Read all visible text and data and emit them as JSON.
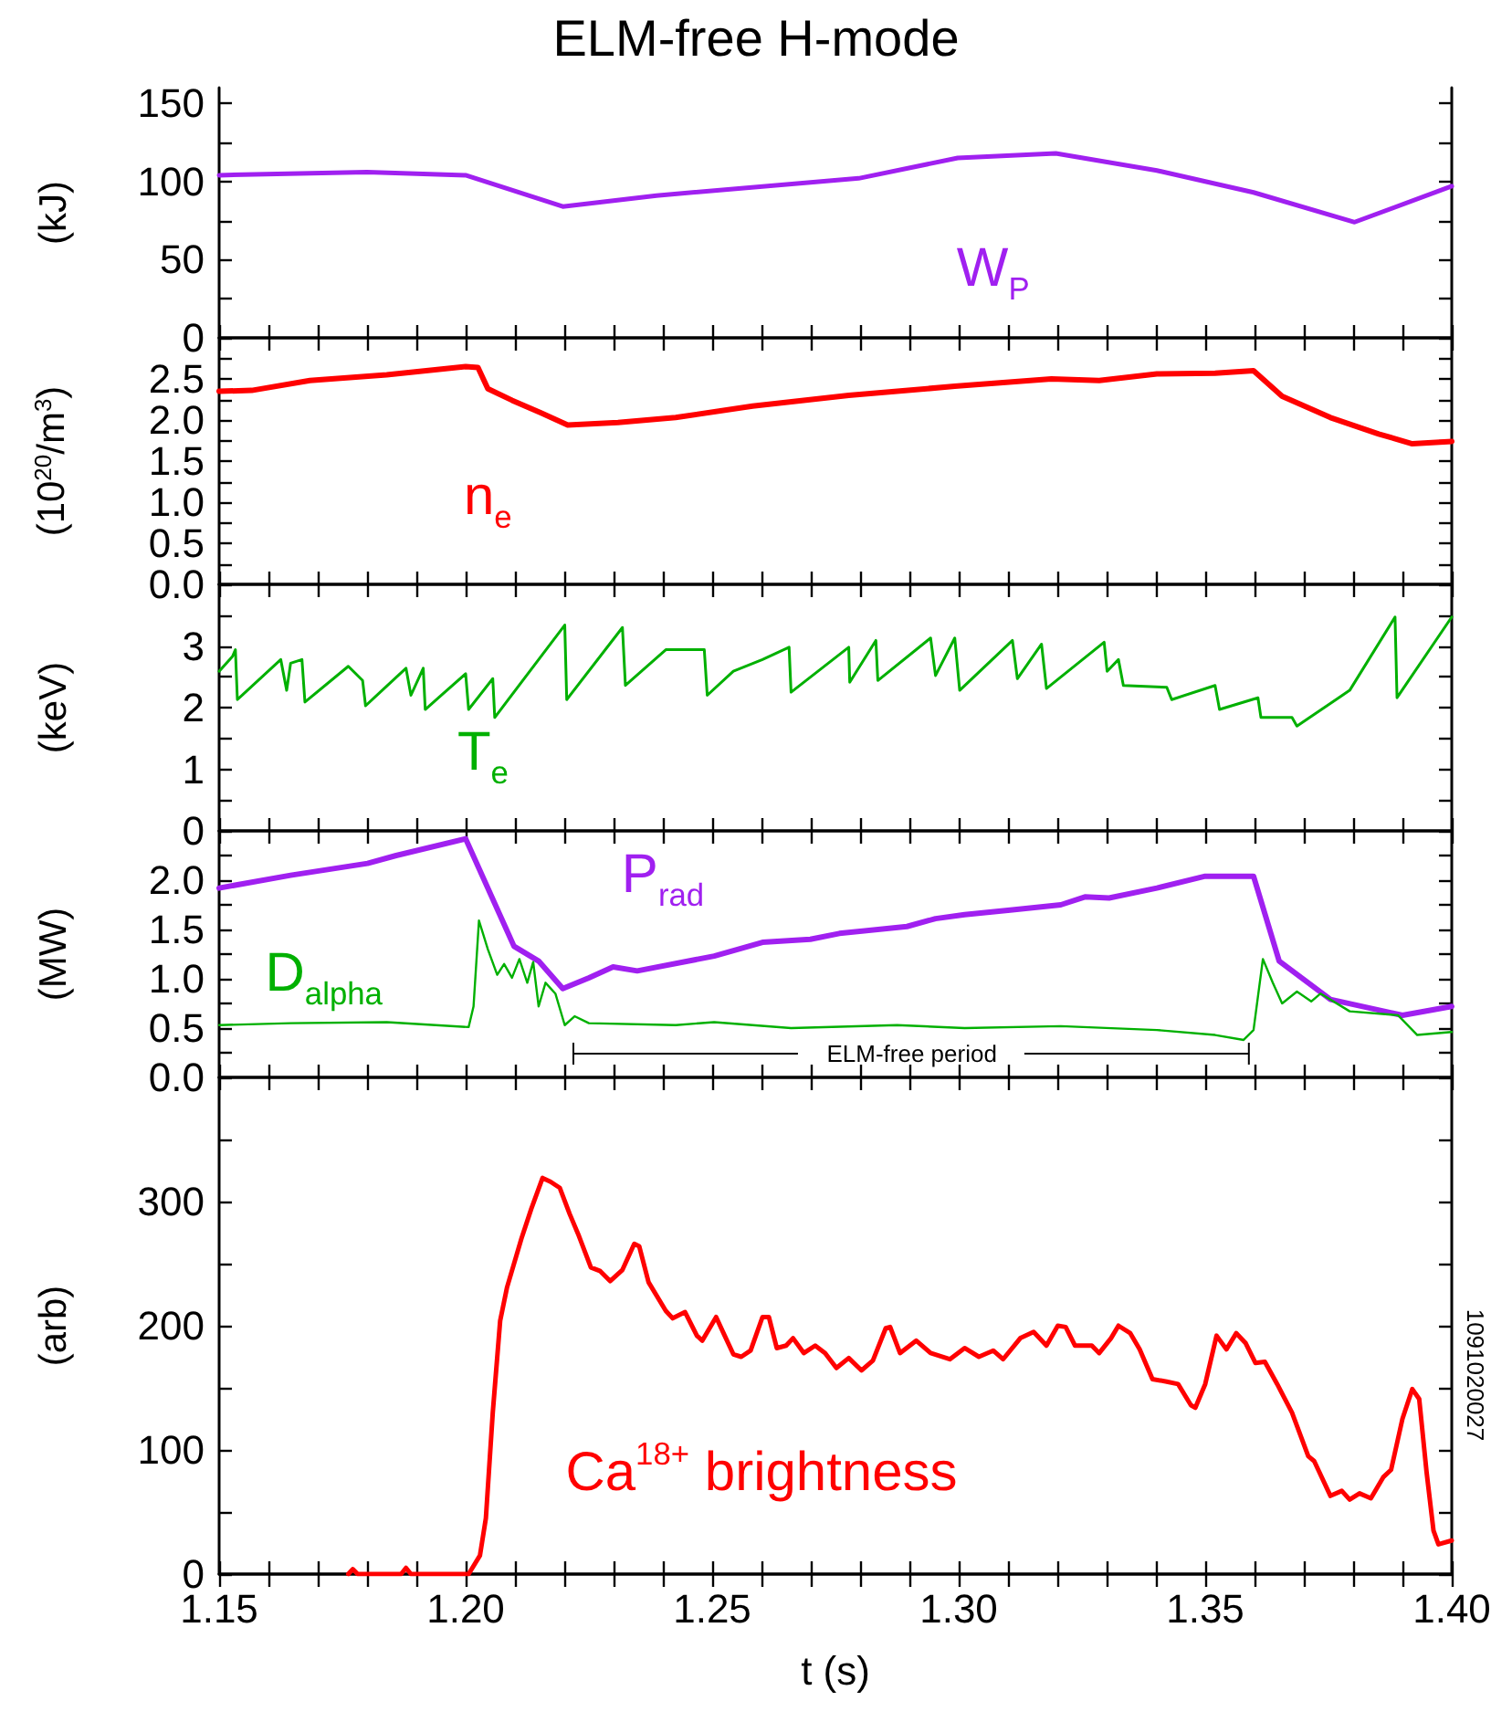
{
  "chart_data": [
    {
      "type": "line",
      "title": "ELM-free H-mode",
      "ylabel": "(kJ)",
      "tick_labels": "y",
      "xlim": [
        1.15,
        1.4
      ],
      "ylim": [
        0,
        160
      ],
      "xticks": [
        1.15,
        1.16,
        1.17,
        1.18,
        1.19,
        1.2,
        1.21,
        1.22,
        1.23,
        1.24,
        1.25,
        1.26,
        1.27,
        1.28,
        1.29,
        1.3,
        1.31,
        1.32,
        1.33,
        1.34,
        1.35,
        1.36,
        1.37,
        1.38,
        1.39,
        1.4
      ],
      "yticks": [
        0,
        {
          "value": 25,
          "label": null
        },
        50,
        {
          "value": 75,
          "label": null
        },
        100,
        {
          "value": 125,
          "label": null
        },
        150
      ],
      "annotations": [
        "W$_{P}$"
      ],
      "series": [
        {
          "color": "#a020f0",
          "x": [
            1.15,
            1.18,
            1.2,
            1.2197,
            1.2387,
            1.2797,
            1.2998,
            1.3197,
            1.3402,
            1.3598,
            1.3803,
            1.4
          ],
          "values": [
            104,
            106,
            104,
            84,
            91,
            102,
            115,
            118,
            107,
            93,
            74,
            97
          ]
        }
      ]
    },
    {
      "type": "line",
      "ylabel": "(10$^{20}$/m$^{3}$)",
      "tick_labels": "y",
      "xlim": [
        1.15,
        1.4
      ],
      "ylim": [
        0,
        3
      ],
      "xticks": [
        1.15,
        1.16,
        1.17,
        1.18,
        1.19,
        1.2,
        1.21,
        1.22,
        1.23,
        1.24,
        1.25,
        1.26,
        1.27,
        1.28,
        1.29,
        1.3,
        1.31,
        1.32,
        1.33,
        1.34,
        1.35,
        1.36,
        1.37,
        1.38,
        1.39,
        1.4
      ],
      "yticks": [
        {
          "value": 0,
          "label": "0.0"
        },
        {
          "value": 0.25,
          "label": null
        },
        0.5,
        {
          "value": 0.75,
          "label": null
        },
        {
          "value": 1,
          "label": "1.0"
        },
        {
          "value": 1.25,
          "label": null
        },
        1.5,
        {
          "value": 1.75,
          "label": null
        },
        {
          "value": 2,
          "label": "2.0"
        },
        {
          "value": 2.25,
          "label": null
        },
        2.5,
        {
          "value": 2.75,
          "label": null
        }
      ],
      "annotations": [
        "n$_{e}$"
      ],
      "series": [
        {
          "color": "#ff0000",
          "x": [
            1.15,
            1.1566,
            1.1684,
            1.184,
            1.2,
            1.2025,
            1.2045,
            1.2094,
            1.2152,
            1.2207,
            1.2309,
            1.2426,
            1.2582,
            1.2777,
            1.2992,
            1.3188,
            1.3285,
            1.3402,
            1.352,
            1.3598,
            1.3656,
            1.3754,
            1.3852,
            1.392,
            1.4
          ],
          "values": [
            2.35,
            2.36,
            2.48,
            2.55,
            2.65,
            2.64,
            2.38,
            2.24,
            2.09,
            1.94,
            1.97,
            2.03,
            2.17,
            2.3,
            2.41,
            2.5,
            2.48,
            2.56,
            2.57,
            2.6,
            2.29,
            2.03,
            1.83,
            1.71,
            1.74
          ]
        }
      ]
    },
    {
      "type": "line",
      "ylabel": "(keV)",
      "tick_labels": "y",
      "xlim": [
        1.15,
        1.4
      ],
      "ylim": [
        0,
        4
      ],
      "xticks": [
        1.15,
        1.16,
        1.17,
        1.18,
        1.19,
        1.2,
        1.21,
        1.22,
        1.23,
        1.24,
        1.25,
        1.26,
        1.27,
        1.28,
        1.29,
        1.3,
        1.31,
        1.32,
        1.33,
        1.34,
        1.35,
        1.36,
        1.37,
        1.38,
        1.39,
        1.4
      ],
      "yticks": [
        0,
        {
          "value": 0.5,
          "label": null
        },
        1,
        {
          "value": 1.5,
          "label": null
        },
        2,
        {
          "value": 2.5,
          "label": null
        },
        3,
        {
          "value": 3.5,
          "label": null
        }
      ],
      "annotations": [
        "T$_{e}$"
      ],
      "series": [
        {
          "color": "#00b000",
          "x": [
            1.15,
            1.1527,
            1.1533,
            1.1537,
            1.1625,
            1.1637,
            1.1645,
            1.1668,
            1.1674,
            1.1762,
            1.1791,
            1.1797,
            1.1879,
            1.1889,
            1.1914,
            1.1918,
            1.2,
            1.2006,
            1.2055,
            1.2059,
            1.2201,
            1.2205,
            1.2318,
            1.2324,
            1.2406,
            1.2484,
            1.249,
            1.2543,
            1.2602,
            1.2656,
            1.266,
            1.2777,
            1.2779,
            1.2832,
            1.2836,
            1.2943,
            1.2953,
            1.2992,
            1.3002,
            1.3109,
            1.3119,
            1.3168,
            1.3178,
            1.3295,
            1.3301,
            1.3324,
            1.3334,
            1.3422,
            1.3432,
            1.352,
            1.3529,
            1.3607,
            1.3613,
            1.3676,
            1.3686,
            1.3793,
            1.3885,
            1.3889,
            1.4
          ],
          "values": [
            2.59,
            2.83,
            2.94,
            2.13,
            2.78,
            2.28,
            2.72,
            2.78,
            2.09,
            2.67,
            2.44,
            2.03,
            2.64,
            2.2,
            2.64,
            1.97,
            2.55,
            1.97,
            2.47,
            1.84,
            3.34,
            2.13,
            3.3,
            2.36,
            2.94,
            2.94,
            2.2,
            2.59,
            2.78,
            2.98,
            2.25,
            2.98,
            2.41,
            3.09,
            2.44,
            3.13,
            2.52,
            3.13,
            2.28,
            3.09,
            2.47,
            3.03,
            2.31,
            3.06,
            2.59,
            2.78,
            2.36,
            2.33,
            2.13,
            2.36,
            1.97,
            2.16,
            1.84,
            1.84,
            1.7,
            2.28,
            3.47,
            2.16,
            3.47
          ]
        }
      ]
    },
    {
      "type": "line",
      "ylabel": "(MW)",
      "tick_labels": "y",
      "xlim": [
        1.15,
        1.4
      ],
      "ylim": [
        0,
        2.5
      ],
      "xticks": [
        1.15,
        1.16,
        1.17,
        1.18,
        1.19,
        1.2,
        1.21,
        1.22,
        1.23,
        1.24,
        1.25,
        1.26,
        1.27,
        1.28,
        1.29,
        1.3,
        1.31,
        1.32,
        1.33,
        1.34,
        1.35,
        1.36,
        1.37,
        1.38,
        1.39,
        1.4
      ],
      "yticks": [
        {
          "value": 0,
          "label": "0.0"
        },
        {
          "value": 0.25,
          "label": null
        },
        0.5,
        {
          "value": 0.75,
          "label": null
        },
        {
          "value": 1,
          "label": "1.0"
        },
        {
          "value": 1.25,
          "label": null
        },
        1.5,
        {
          "value": 1.75,
          "label": null
        },
        {
          "value": 2,
          "label": "2.0"
        },
        {
          "value": 2.25,
          "label": null
        }
      ],
      "annotations": [
        "P$_{rad}$",
        "D$_{alpha}$",
        "ELM-free period"
      ],
      "series": [
        {
          "color": "#a020f0",
          "x": [
            1.15,
            1.1645,
            1.1801,
            1.1859,
            1.2,
            1.2098,
            1.2148,
            1.2197,
            1.225,
            1.2299,
            1.2348,
            1.2504,
            1.2602,
            1.2699,
            1.2758,
            1.2895,
            1.2953,
            1.3012,
            1.3109,
            1.3207,
            1.3256,
            1.3305,
            1.3402,
            1.35,
            1.3598,
            1.365,
            1.3754,
            1.39,
            1.4
          ],
          "values": [
            1.92,
            2.05,
            2.17,
            2.25,
            2.42,
            1.33,
            1.18,
            0.9,
            1.01,
            1.12,
            1.08,
            1.23,
            1.37,
            1.4,
            1.46,
            1.53,
            1.61,
            1.65,
            1.7,
            1.75,
            1.83,
            1.82,
            1.92,
            2.04,
            2.04,
            1.18,
            0.79,
            0.63,
            0.72
          ]
        },
        {
          "color": "#00b000",
          "x": [
            1.15,
            1.1645,
            1.184,
            1.2006,
            1.2016,
            1.2027,
            1.2045,
            1.2064,
            1.2078,
            1.2094,
            1.2109,
            1.2125,
            1.2137,
            1.2148,
            1.2162,
            1.2182,
            1.2201,
            1.2221,
            1.225,
            1.2426,
            1.2504,
            1.266,
            1.2875,
            1.3012,
            1.3207,
            1.3402,
            1.352,
            1.3578,
            1.3598,
            1.3617,
            1.3637,
            1.3656,
            1.3686,
            1.3715,
            1.3734,
            1.3793,
            1.3891,
            1.393,
            1.4
          ],
          "values": [
            0.53,
            0.55,
            0.56,
            0.51,
            0.72,
            1.59,
            1.3,
            1.04,
            1.15,
            1.01,
            1.2,
            0.96,
            1.17,
            0.72,
            0.96,
            0.85,
            0.53,
            0.62,
            0.55,
            0.53,
            0.56,
            0.5,
            0.53,
            0.5,
            0.52,
            0.48,
            0.43,
            0.38,
            0.48,
            1.2,
            0.96,
            0.75,
            0.87,
            0.77,
            0.85,
            0.67,
            0.63,
            0.43,
            0.46
          ]
        }
      ]
    },
    {
      "type": "line",
      "ylabel": "(arb)",
      "xlabel": "t (s)",
      "xlim": [
        1.15,
        1.4
      ],
      "ylim": [
        0,
        400
      ],
      "xticks": [
        {
          "value": 1.15,
          "label": "1.15"
        },
        {
          "value": 1.16,
          "label": null
        },
        {
          "value": 1.17,
          "label": null
        },
        {
          "value": 1.18,
          "label": null
        },
        {
          "value": 1.19,
          "label": null
        },
        {
          "value": 1.2,
          "label": "1.20"
        },
        {
          "value": 1.21,
          "label": null
        },
        {
          "value": 1.22,
          "label": null
        },
        {
          "value": 1.23,
          "label": null
        },
        {
          "value": 1.24,
          "label": null
        },
        {
          "value": 1.25,
          "label": "1.25"
        },
        {
          "value": 1.26,
          "label": null
        },
        {
          "value": 1.27,
          "label": null
        },
        {
          "value": 1.28,
          "label": null
        },
        {
          "value": 1.29,
          "label": null
        },
        {
          "value": 1.3,
          "label": "1.30"
        },
        {
          "value": 1.31,
          "label": null
        },
        {
          "value": 1.32,
          "label": null
        },
        {
          "value": 1.33,
          "label": null
        },
        {
          "value": 1.34,
          "label": null
        },
        {
          "value": 1.35,
          "label": "1.35"
        },
        {
          "value": 1.36,
          "label": null
        },
        {
          "value": 1.37,
          "label": null
        },
        {
          "value": 1.38,
          "label": null
        },
        {
          "value": 1.39,
          "label": null
        },
        {
          "value": 1.4,
          "label": "1.40"
        }
      ],
      "yticks": [
        0,
        {
          "value": 50,
          "label": null
        },
        100,
        {
          "value": 150,
          "label": null
        },
        200,
        {
          "value": 250,
          "label": null
        },
        300,
        {
          "value": 350,
          "label": null
        }
      ],
      "annotations": [
        "Ca$^{18+}$ brightness",
        "1091020027"
      ],
      "series": [
        {
          "color": "#ff0000",
          "x": [
            1.1762,
            1.1771,
            1.1781,
            1.1869,
            1.1879,
            1.1889,
            1.2006,
            1.2029,
            1.2041,
            1.2055,
            1.207,
            1.2084,
            1.2113,
            1.2133,
            1.2156,
            1.2172,
            1.2191,
            1.2211,
            1.223,
            1.2254,
            1.2273,
            1.2293,
            1.2318,
            1.2342,
            1.2352,
            1.2371,
            1.2406,
            1.242,
            1.2445,
            1.2469,
            1.248,
            1.2508,
            1.2523,
            1.2543,
            1.2559,
            1.2578,
            1.2602,
            1.2615,
            1.2631,
            1.265,
            1.2664,
            1.2686,
            1.2709,
            1.2729,
            1.2752,
            1.2777,
            1.2803,
            1.2826,
            1.2852,
            1.2861,
            1.2881,
            1.2914,
            1.2943,
            1.2982,
            1.3012,
            1.3041,
            1.307,
            1.309,
            1.3125,
            1.3152,
            1.3178,
            1.3201,
            1.3217,
            1.3236,
            1.327,
            1.3285,
            1.3309,
            1.3324,
            1.3348,
            1.3367,
            1.3393,
            1.3422,
            1.3445,
            1.3471,
            1.348,
            1.35,
            1.3523,
            1.3543,
            1.3563,
            1.3582,
            1.3602,
            1.3621,
            1.3646,
            1.3676,
            1.3709,
            1.3721,
            1.3754,
            1.3777,
            1.3793,
            1.3813,
            1.3836,
            1.3861,
            1.3877,
            1.39,
            1.392,
            1.3934,
            1.3949,
            1.3963,
            1.3973,
            1.4
          ],
          "values": [
            0,
            4,
            0,
            0,
            5,
            0,
            0,
            15,
            45,
            130,
            204,
            231,
            270,
            294,
            319,
            316,
            311,
            290,
            272,
            247,
            244,
            236,
            245,
            266,
            264,
            235,
            212,
            206,
            211,
            192,
            188,
            207,
            194,
            177,
            175,
            180,
            207,
            207,
            182,
            184,
            190,
            178,
            184,
            178,
            166,
            174,
            164,
            172,
            198,
            199,
            178,
            188,
            178,
            173,
            182,
            175,
            180,
            173,
            190,
            195,
            184,
            200,
            199,
            184,
            184,
            178,
            190,
            200,
            194,
            181,
            157,
            155,
            153,
            136,
            134,
            153,
            192,
            181,
            194,
            186,
            170,
            171,
            153,
            130,
            95,
            91,
            63,
            67,
            60,
            65,
            61,
            78,
            84,
            125,
            149,
            141,
            82,
            35,
            24,
            27
          ]
        }
      ]
    }
  ]
}
